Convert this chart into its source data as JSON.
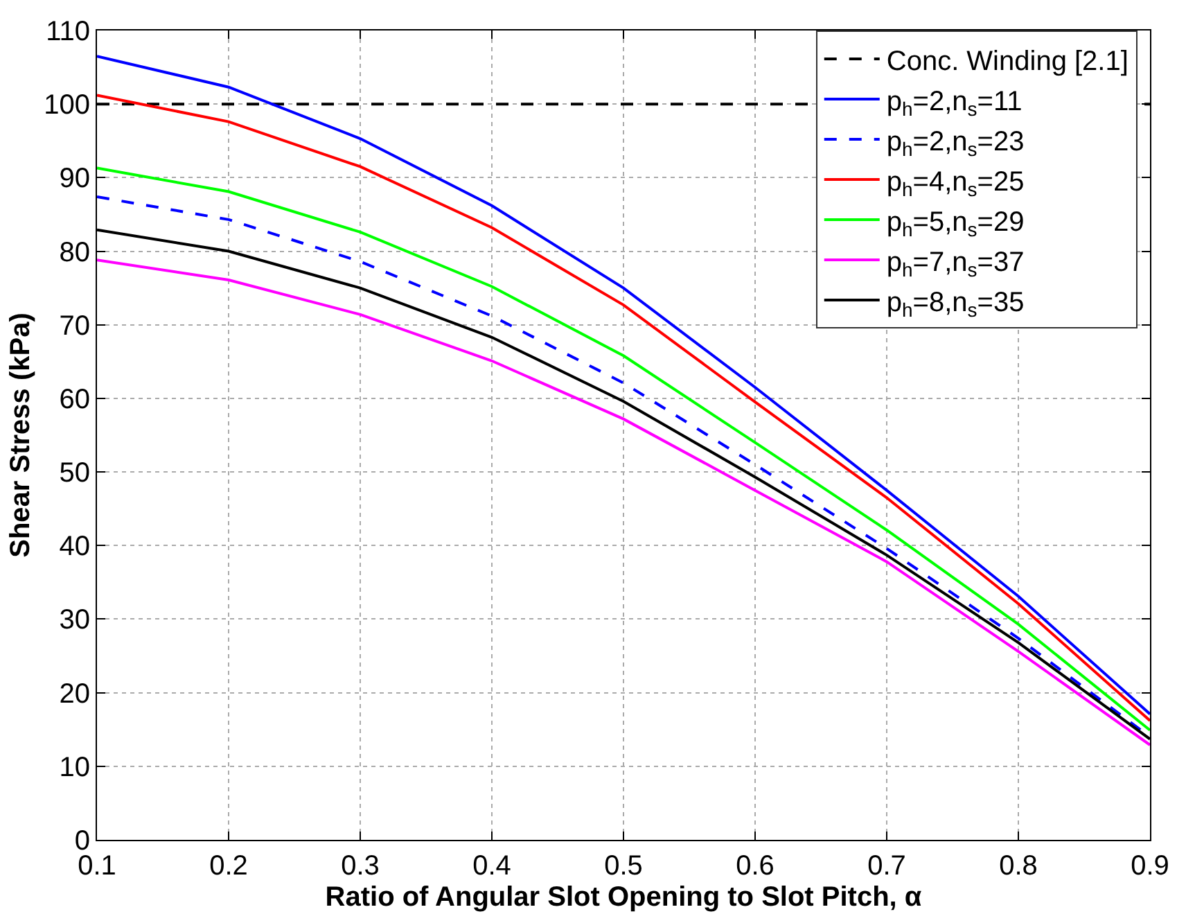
{
  "chart_data": {
    "type": "line",
    "xlabel": "Ratio of Angular Slot Opening to Slot Pitch, α",
    "ylabel": "Shear Stress (kPa)",
    "xlim": [
      0.1,
      0.9
    ],
    "xticks": [
      0.1,
      0.2,
      0.3,
      0.4,
      0.5,
      0.6,
      0.7,
      0.8,
      0.9
    ],
    "ylim": [
      0,
      110
    ],
    "yticks": [
      0,
      10,
      20,
      30,
      40,
      50,
      60,
      70,
      80,
      90,
      100,
      110
    ],
    "grid": true,
    "legend": "top right",
    "marker": "none",
    "x": [
      0.1,
      0.2,
      0.3,
      0.4,
      0.5,
      0.6,
      0.7,
      0.8,
      0.9
    ],
    "series": [
      {
        "name": "Conc. Winding [2.1]",
        "color": "#000000",
        "line_style": "dashed",
        "x": [
          0.1,
          0.9
        ],
        "values": [
          100,
          100
        ]
      },
      {
        "name": "p$_{h}$=2,n$_{s}$=11",
        "color": "#0000ff",
        "line_style": "solid",
        "values": [
          106.5,
          102.3,
          95.3,
          86.2,
          75,
          61.5,
          47.5,
          33.1,
          17.1
        ]
      },
      {
        "name": "p$_{h}$=2,n$_{s}$=23",
        "color": "#0000ff",
        "line_style": "dashed",
        "values": [
          87.4,
          84.3,
          78.6,
          71.2,
          62.1,
          51,
          39.6,
          27.4,
          14
        ]
      },
      {
        "name": "p$_{h}$=4,n$_{s}$=25",
        "color": "#ff0000",
        "line_style": "solid",
        "values": [
          101.2,
          97.6,
          91.5,
          83.2,
          72.7,
          59.5,
          46.5,
          32.1,
          16.2
        ]
      },
      {
        "name": "p$_{h}$=5,n$_{s}$=29",
        "color": "#00ff00",
        "line_style": "solid",
        "values": [
          91.3,
          88.1,
          82.6,
          75.2,
          65.8,
          54,
          42.1,
          29.3,
          14.9
        ]
      },
      {
        "name": "p$_{h}$=7,n$_{s}$=37",
        "color": "#ff00ff",
        "line_style": "solid",
        "values": [
          78.8,
          76.1,
          71.4,
          65.1,
          57.2,
          47.5,
          37.8,
          25.6,
          12.9
        ]
      },
      {
        "name": "p$_{h}$=8,n$_{s}$=35",
        "color": "#000000",
        "line_style": "solid",
        "values": [
          82.9,
          80,
          75,
          68.3,
          59.6,
          49.3,
          38.7,
          26.8,
          13.7
        ]
      }
    ]
  }
}
